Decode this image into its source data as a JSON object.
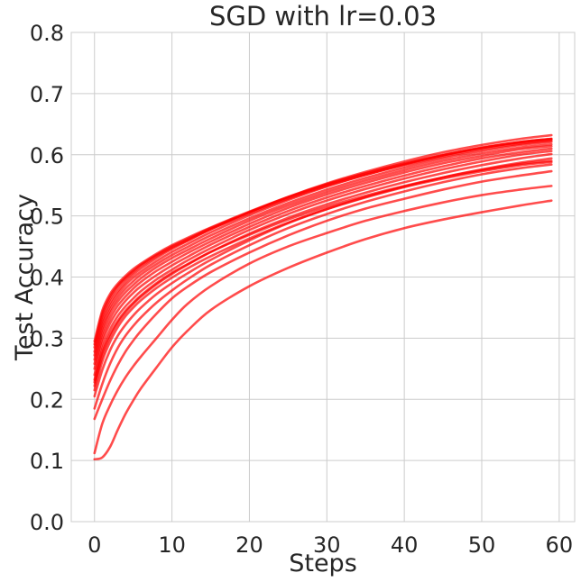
{
  "chart_data": {
    "type": "line",
    "title": "SGD with lr=0.03",
    "xlabel": "Steps",
    "ylabel": "Test Accuracy",
    "xlim": [
      -3,
      62
    ],
    "ylim": [
      0.0,
      0.8
    ],
    "xticks": [
      0,
      10,
      20,
      30,
      40,
      50,
      60
    ],
    "yticks": [
      0.0,
      0.1,
      0.2,
      0.3,
      0.4,
      0.5,
      0.6,
      0.7,
      0.8
    ],
    "xtick_labels": [
      "0",
      "10",
      "20",
      "30",
      "40",
      "50",
      "60"
    ],
    "ytick_labels": [
      "0.0",
      "0.1",
      "0.2",
      "0.3",
      "0.4",
      "0.5",
      "0.6",
      "0.7",
      "0.8"
    ],
    "grid": true,
    "line_color": "#ff0000",
    "line_opacity": 0.7,
    "x": [
      0,
      1,
      2,
      3,
      4,
      5,
      6,
      8,
      10,
      12,
      15,
      20,
      25,
      30,
      35,
      40,
      45,
      50,
      55,
      59
    ],
    "series": [
      {
        "values": [
          0.102,
          0.105,
          0.122,
          0.15,
          0.176,
          0.198,
          0.218,
          0.252,
          0.285,
          0.312,
          0.346,
          0.385,
          0.415,
          0.44,
          0.462,
          0.48,
          0.494,
          0.506,
          0.517,
          0.525
        ]
      },
      {
        "values": [
          0.112,
          0.16,
          0.19,
          0.215,
          0.236,
          0.254,
          0.27,
          0.3,
          0.33,
          0.356,
          0.385,
          0.422,
          0.45,
          0.472,
          0.492,
          0.508,
          0.522,
          0.534,
          0.543,
          0.549
        ]
      },
      {
        "values": [
          0.168,
          0.2,
          0.23,
          0.256,
          0.278,
          0.296,
          0.312,
          0.34,
          0.365,
          0.384,
          0.408,
          0.44,
          0.468,
          0.492,
          0.512,
          0.528,
          0.543,
          0.556,
          0.566,
          0.573
        ]
      },
      {
        "values": [
          0.185,
          0.225,
          0.258,
          0.284,
          0.304,
          0.32,
          0.334,
          0.358,
          0.378,
          0.396,
          0.42,
          0.452,
          0.48,
          0.503,
          0.523,
          0.54,
          0.555,
          0.568,
          0.578,
          0.584
        ]
      },
      {
        "values": [
          0.205,
          0.248,
          0.28,
          0.304,
          0.322,
          0.337,
          0.35,
          0.372,
          0.39,
          0.406,
          0.428,
          0.46,
          0.488,
          0.511,
          0.531,
          0.548,
          0.563,
          0.576,
          0.587,
          0.594
        ]
      },
      {
        "values": [
          0.222,
          0.27,
          0.302,
          0.325,
          0.342,
          0.356,
          0.368,
          0.388,
          0.405,
          0.42,
          0.441,
          0.471,
          0.497,
          0.519,
          0.538,
          0.555,
          0.57,
          0.583,
          0.594,
          0.601
        ]
      },
      {
        "values": [
          0.232,
          0.282,
          0.314,
          0.336,
          0.352,
          0.365,
          0.377,
          0.396,
          0.412,
          0.427,
          0.447,
          0.477,
          0.503,
          0.525,
          0.544,
          0.561,
          0.576,
          0.589,
          0.6,
          0.606
        ]
      },
      {
        "values": [
          0.24,
          0.292,
          0.324,
          0.345,
          0.361,
          0.374,
          0.385,
          0.403,
          0.419,
          0.433,
          0.453,
          0.482,
          0.508,
          0.53,
          0.549,
          0.566,
          0.581,
          0.594,
          0.604,
          0.61
        ]
      },
      {
        "values": [
          0.25,
          0.3,
          0.332,
          0.353,
          0.368,
          0.381,
          0.392,
          0.41,
          0.425,
          0.439,
          0.458,
          0.487,
          0.513,
          0.535,
          0.554,
          0.571,
          0.586,
          0.598,
          0.609,
          0.614
        ]
      },
      {
        "values": [
          0.258,
          0.308,
          0.34,
          0.36,
          0.375,
          0.387,
          0.398,
          0.416,
          0.431,
          0.444,
          0.463,
          0.492,
          0.517,
          0.539,
          0.558,
          0.575,
          0.59,
          0.602,
          0.612,
          0.617
        ]
      },
      {
        "values": [
          0.265,
          0.315,
          0.346,
          0.366,
          0.381,
          0.393,
          0.404,
          0.421,
          0.436,
          0.449,
          0.468,
          0.496,
          0.521,
          0.543,
          0.562,
          0.579,
          0.594,
          0.606,
          0.616,
          0.621
        ]
      },
      {
        "values": [
          0.272,
          0.322,
          0.352,
          0.372,
          0.387,
          0.399,
          0.409,
          0.426,
          0.441,
          0.454,
          0.473,
          0.501,
          0.526,
          0.548,
          0.567,
          0.584,
          0.599,
          0.611,
          0.621,
          0.626
        ]
      },
      {
        "values": [
          0.278,
          0.328,
          0.358,
          0.377,
          0.392,
          0.404,
          0.414,
          0.431,
          0.446,
          0.459,
          0.478,
          0.506,
          0.531,
          0.553,
          0.572,
          0.589,
          0.604,
          0.616,
          0.626,
          0.632
        ]
      },
      {
        "values": [
          0.285,
          0.335,
          0.364,
          0.383,
          0.397,
          0.408,
          0.418,
          0.434,
          0.448,
          0.46,
          0.478,
          0.504,
          0.528,
          0.549,
          0.567,
          0.583,
          0.597,
          0.609,
          0.618,
          0.623
        ]
      },
      {
        "values": [
          0.29,
          0.34,
          0.368,
          0.386,
          0.399,
          0.41,
          0.42,
          0.436,
          0.45,
          0.462,
          0.48,
          0.506,
          0.53,
          0.551,
          0.569,
          0.585,
          0.599,
          0.611,
          0.62,
          0.625
        ]
      },
      {
        "values": [
          0.295,
          0.345,
          0.372,
          0.389,
          0.402,
          0.413,
          0.422,
          0.438,
          0.452,
          0.464,
          0.481,
          0.507,
          0.531,
          0.552,
          0.57,
          0.586,
          0.6,
          0.612,
          0.621,
          0.626
        ]
      },
      {
        "values": [
          0.228,
          0.276,
          0.306,
          0.328,
          0.345,
          0.358,
          0.37,
          0.39,
          0.407,
          0.421,
          0.441,
          0.469,
          0.494,
          0.515,
          0.533,
          0.549,
          0.563,
          0.575,
          0.585,
          0.59
        ]
      },
      {
        "values": [
          0.215,
          0.262,
          0.294,
          0.318,
          0.336,
          0.35,
          0.362,
          0.382,
          0.399,
          0.414,
          0.434,
          0.463,
          0.489,
          0.511,
          0.53,
          0.547,
          0.561,
          0.573,
          0.583,
          0.588
        ]
      }
    ]
  }
}
